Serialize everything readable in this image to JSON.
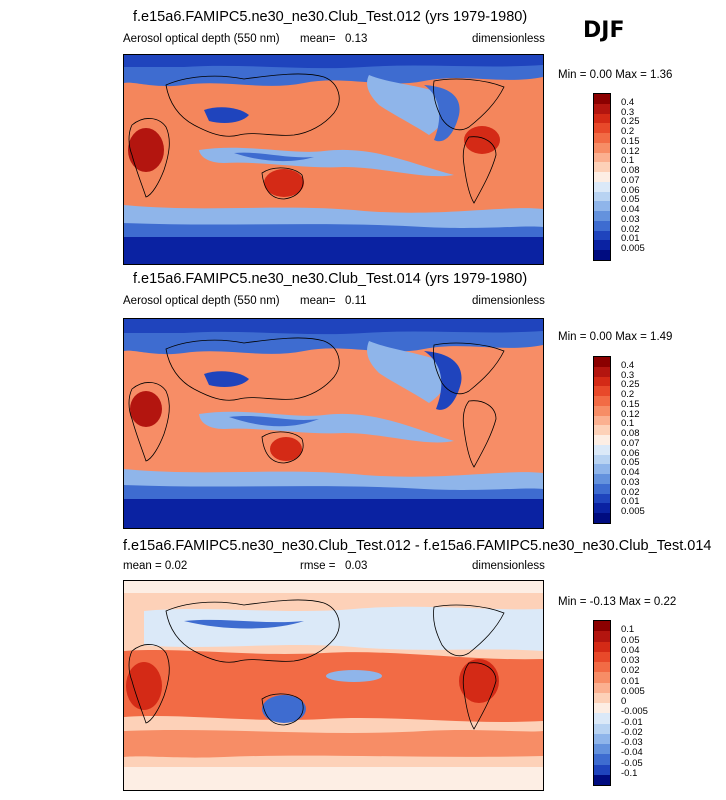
{
  "season": "DJF",
  "panels": [
    {
      "title": "f.e15a6.FAMIPC5.ne30_ne30.Club_Test.012 (yrs 1979-1980)",
      "left_label": "Aerosol optical depth (550 nm)",
      "mean_label": "mean=",
      "mean_value": "0.13",
      "units": "dimensionless",
      "minmax": "Min =  0.00 Max =  1.36"
    },
    {
      "title": "f.e15a6.FAMIPC5.ne30_ne30.Club_Test.014 (yrs 1979-1980)",
      "left_label": "Aerosol optical depth (550 nm)",
      "mean_label": "mean=",
      "mean_value": "0.11",
      "units": "dimensionless",
      "minmax": "Min =  0.00 Max =  1.49"
    },
    {
      "title": "f.e15a6.FAMIPC5.ne30_ne30.Club_Test.012 - f.e15a6.FAMIPC5.ne30_ne30.Club_Test.014",
      "left_label": "mean =   0.02",
      "mean_label": "rmse =",
      "mean_value": "0.03",
      "units": "dimensionless",
      "minmax": "Min = -0.13 Max =  0.22"
    }
  ],
  "chart_data": [
    {
      "type": "heatmap",
      "title": "f.e15a6.FAMIPC5.ne30_ne30.Club_Test.012 (yrs 1979-1980)",
      "variable": "Aerosol optical depth (550 nm)",
      "units": "dimensionless",
      "mean": 0.13,
      "min": 0.0,
      "max": 1.36,
      "colorbar_levels": [
        "0.4",
        "0.3",
        "0.25",
        "0.2",
        "0.15",
        "0.12",
        "0.1",
        "0.08",
        "0.07",
        "0.06",
        "0.05",
        "0.04",
        "0.03",
        "0.02",
        "0.01",
        "0.005"
      ],
      "colorbar_colors": [
        "#8b0000",
        "#b3150f",
        "#d42a16",
        "#e8492a",
        "#f26b45",
        "#f78d66",
        "#fbb090",
        "#fdd1b8",
        "#fdeee4",
        "#dbe9f8",
        "#b8d3f2",
        "#8fb5ea",
        "#6492dd",
        "#3e6cd0",
        "#1f44bd",
        "#0a22a2",
        "#000c80"
      ]
    },
    {
      "type": "heatmap",
      "title": "f.e15a6.FAMIPC5.ne30_ne30.Club_Test.014 (yrs 1979-1980)",
      "variable": "Aerosol optical depth (550 nm)",
      "units": "dimensionless",
      "mean": 0.11,
      "min": 0.0,
      "max": 1.49,
      "colorbar_levels": [
        "0.4",
        "0.3",
        "0.25",
        "0.2",
        "0.15",
        "0.12",
        "0.1",
        "0.08",
        "0.07",
        "0.06",
        "0.05",
        "0.04",
        "0.03",
        "0.02",
        "0.01",
        "0.005"
      ],
      "colorbar_colors": [
        "#8b0000",
        "#b3150f",
        "#d42a16",
        "#e8492a",
        "#f26b45",
        "#f78d66",
        "#fbb090",
        "#fdd1b8",
        "#fdeee4",
        "#dbe9f8",
        "#b8d3f2",
        "#8fb5ea",
        "#6492dd",
        "#3e6cd0",
        "#1f44bd",
        "#0a22a2",
        "#000c80"
      ]
    },
    {
      "type": "heatmap",
      "title": "f.e15a6.FAMIPC5.ne30_ne30.Club_Test.012 - f.e15a6.FAMIPC5.ne30_ne30.Club_Test.014",
      "units": "dimensionless",
      "mean": 0.02,
      "rmse": 0.03,
      "min": -0.13,
      "max": 0.22,
      "colorbar_levels": [
        "0.1",
        "0.05",
        "0.04",
        "0.03",
        "0.02",
        "0.01",
        "0.005",
        "0",
        "-0.005",
        "-0.01",
        "-0.02",
        "-0.03",
        "-0.04",
        "-0.05",
        "-0.1"
      ],
      "colorbar_colors": [
        "#8b0000",
        "#b3150f",
        "#d42a16",
        "#e8492a",
        "#f26b45",
        "#f78d66",
        "#fbb090",
        "#fdd1b8",
        "#fdeee4",
        "#dbe9f8",
        "#b8d3f2",
        "#8fb5ea",
        "#6492dd",
        "#3e6cd0",
        "#1f44bd",
        "#000c80"
      ]
    }
  ]
}
